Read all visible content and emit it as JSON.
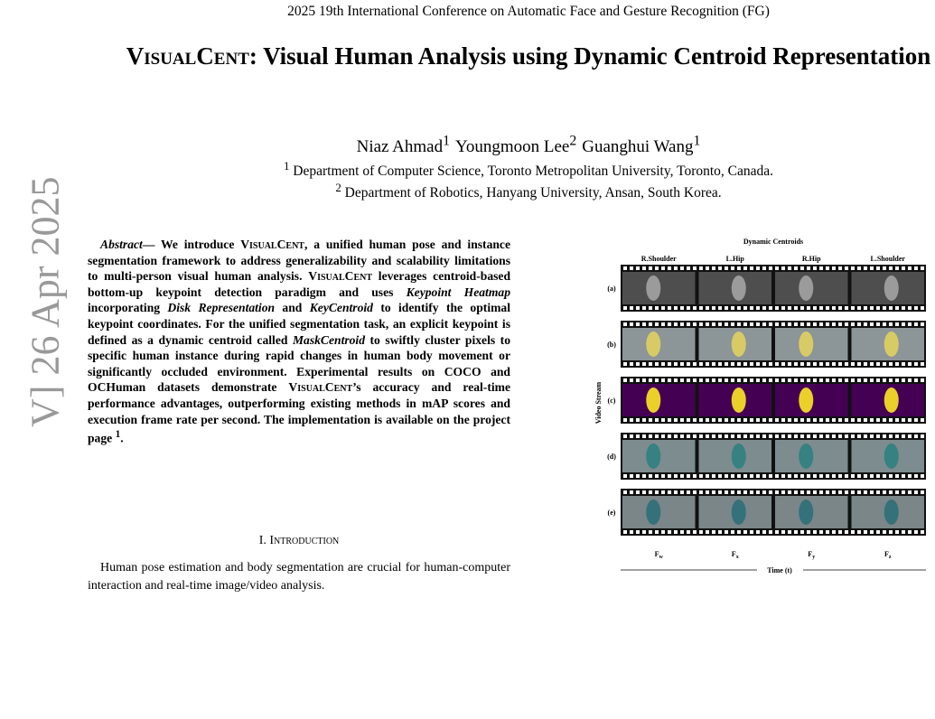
{
  "header": {
    "conference": "2025 19th International Conference on Automatic Face and Gesture Recognition (FG)"
  },
  "title": {
    "parts": [
      {
        "text": "VisualCent",
        "style": "sc"
      },
      {
        "text": ": Visual Human Analysis using Dynamic Centroid Representation"
      }
    ]
  },
  "authors": [
    {
      "name": "Niaz Ahmad",
      "aff": "1"
    },
    {
      "name": "Youngmoon Lee",
      "aff": "2"
    },
    {
      "name": "Guanghui Wang",
      "aff": "1"
    }
  ],
  "affiliations": [
    {
      "mark": "1",
      "text": "Department of Computer Science, Toronto Metropolitan University, Toronto, Canada."
    },
    {
      "mark": "2",
      "text": "Department of Robotics, Hanyang University, Ansan, South Korea."
    }
  ],
  "watermark": "V] 26 Apr 2025",
  "abstract": {
    "segments": [
      {
        "text": "Abstract",
        "style": "italic"
      },
      {
        "text": "— We introduce "
      },
      {
        "text": "VisualCent",
        "style": "sc"
      },
      {
        "text": ", a unified human pose and instance segmentation framework to address generalizability and scalability limitations to multi-person visual human analysis. "
      },
      {
        "text": "VisualCent",
        "style": "sc"
      },
      {
        "text": " leverages centroid-based bottom-up keypoint detection paradigm and uses "
      },
      {
        "text": "Keypoint Heatmap",
        "style": "italic"
      },
      {
        "text": " incorporating "
      },
      {
        "text": "Disk Representation",
        "style": "italic"
      },
      {
        "text": " and "
      },
      {
        "text": "KeyCentroid",
        "style": "italic"
      },
      {
        "text": " to identify the optimal keypoint coordinates. For the unified segmentation task, an explicit keypoint is defined as a dynamic centroid called "
      },
      {
        "text": "MaskCentroid",
        "style": "italic"
      },
      {
        "text": " to swiftly cluster pixels to specific human instance during rapid changes in human body movement or significantly occluded environment. Experimental results on COCO and OCHuman datasets demonstrate "
      },
      {
        "text": "VisualCent",
        "style": "sc"
      },
      {
        "text": "’s accuracy and real-time performance advantages, outperforming existing methods in mAP scores and execution frame rate per second. The implementation is available on the project page "
      },
      {
        "text": "1",
        "style": "sup"
      },
      {
        "text": "."
      }
    ]
  },
  "section": {
    "heading": "I. Introduction",
    "text": "Human pose estimation and body segmentation are crucial for human-computer interaction and real-time image/video analysis."
  },
  "figure": {
    "title": "Dynamic Centroids",
    "columns": [
      "R.Shoulder",
      "L.Hip",
      "R.Hip",
      "L.Shoulder"
    ],
    "rows": [
      "(a)",
      "(b)",
      "(c)",
      "(d)",
      "(e)"
    ],
    "y_label": "Video Stream",
    "frames": [
      {
        "main": "F",
        "sub": "w"
      },
      {
        "main": "F",
        "sub": "x"
      },
      {
        "main": "F",
        "sub": "y"
      },
      {
        "main": "F",
        "sub": "z"
      }
    ],
    "x_label": "Time (t)"
  }
}
